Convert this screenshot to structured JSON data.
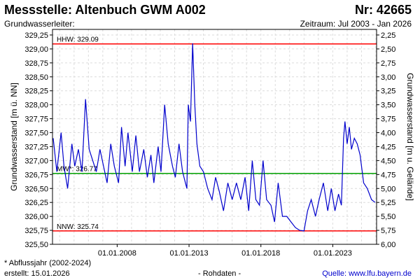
{
  "header": {
    "title": "Messstelle: Altenbuch GWM A002",
    "number": "Nr: 42665",
    "aquifer_label": "Grundwasserleiter:",
    "period": "Zeitraum: Jul 2003 - Jan 2026"
  },
  "footer": {
    "note": "* Abflussjahr (2002-2024)",
    "created": "erstellt:  15.01.2026",
    "rawdata": "- Rohdaten -",
    "source_label": "Quelle: ",
    "source_link": "www.lfu.bayern.de"
  },
  "chart_data": {
    "type": "line",
    "ylabel": "Grundwasserstand [m ü. NN]",
    "ylabel_right": "Grundwasserstand [m u. Gelände]",
    "ylim": [
      325.5,
      329.35
    ],
    "xlim": [
      2003.5,
      2026.05
    ],
    "y_ticks": [
      "325,50",
      "325,75",
      "326,00",
      "326,25",
      "326,50",
      "326,75",
      "327,00",
      "327,25",
      "327,50",
      "327,75",
      "328,00",
      "328,25",
      "328,50",
      "328,75",
      "329,00",
      "329,25"
    ],
    "y2_ticks": [
      "6,00",
      "5,75",
      "5,50",
      "5,25",
      "5,00",
      "4,75",
      "4,50",
      "4,25",
      "4,00",
      "3,75",
      "3,50",
      "3,25",
      "3,00",
      "2,75",
      "2,50",
      "2,25"
    ],
    "x_ticks": [
      {
        "label": "01.01.2008",
        "value": 2008.0
      },
      {
        "label": "01.01.2013",
        "value": 2013.0
      },
      {
        "label": "01.01.2018",
        "value": 2018.0
      },
      {
        "label": "01.01.2023",
        "value": 2023.0
      }
    ],
    "reference_lines": [
      {
        "label": "HHW: 329.09",
        "value": 329.09,
        "color": "#ff0000"
      },
      {
        "label": "MW*: 326.77",
        "value": 326.77,
        "color": "#00a000"
      },
      {
        "label": "NNW: 325.74",
        "value": 325.74,
        "color": "#ff0000"
      }
    ],
    "series_color": "#0000cc",
    "grid": true,
    "x": [
      2003.55,
      2003.8,
      2004.1,
      2004.3,
      2004.55,
      2004.85,
      2005.05,
      2005.3,
      2005.55,
      2005.8,
      2006.05,
      2006.3,
      2006.55,
      2006.8,
      2007.05,
      2007.3,
      2007.55,
      2007.8,
      2008.1,
      2008.3,
      2008.55,
      2008.75,
      2009.05,
      2009.3,
      2009.55,
      2009.85,
      2010.1,
      2010.35,
      2010.55,
      2010.85,
      2011.05,
      2011.3,
      2011.55,
      2011.85,
      2012.05,
      2012.3,
      2012.55,
      2012.75,
      2012.85,
      2012.95,
      2013.1,
      2013.25,
      2013.4,
      2013.55,
      2013.75,
      2014.0,
      2014.3,
      2014.6,
      2014.85,
      2015.1,
      2015.4,
      2015.7,
      2016.0,
      2016.3,
      2016.6,
      2016.9,
      2017.15,
      2017.4,
      2017.65,
      2017.9,
      2018.15,
      2018.4,
      2018.7,
      2018.95,
      2019.2,
      2019.5,
      2019.8,
      2020.1,
      2020.4,
      2020.7,
      2021.0,
      2021.25,
      2021.5,
      2021.8,
      2022.05,
      2022.35,
      2022.65,
      2022.9,
      2023.15,
      2023.4,
      2023.6,
      2023.75,
      2023.85,
      2024.0,
      2024.15,
      2024.3,
      2024.5,
      2024.7,
      2024.9,
      2025.15,
      2025.4,
      2025.7,
      2025.95
    ],
    "values": [
      327.4,
      326.8,
      327.5,
      326.9,
      326.5,
      327.3,
      326.9,
      327.2,
      326.8,
      328.1,
      327.2,
      327.0,
      326.8,
      327.2,
      326.9,
      326.6,
      327.3,
      326.9,
      326.6,
      327.6,
      326.9,
      327.5,
      326.8,
      327.45,
      326.8,
      327.2,
      326.7,
      327.1,
      326.6,
      327.25,
      326.8,
      328.0,
      327.3,
      326.9,
      326.7,
      327.3,
      326.8,
      326.6,
      326.5,
      328.0,
      327.7,
      329.1,
      328.0,
      327.3,
      326.9,
      326.8,
      326.5,
      326.3,
      326.7,
      326.45,
      326.1,
      326.6,
      326.3,
      326.6,
      326.3,
      326.7,
      326.1,
      327.0,
      326.3,
      326.2,
      327.0,
      326.3,
      326.2,
      325.9,
      326.6,
      326.0,
      326.0,
      325.9,
      325.8,
      325.75,
      325.74,
      326.1,
      326.3,
      326.0,
      326.3,
      326.6,
      326.1,
      326.5,
      326.1,
      326.4,
      326.2,
      327.4,
      327.7,
      327.3,
      327.6,
      327.2,
      327.4,
      327.3,
      327.1,
      326.6,
      326.5,
      326.3,
      326.25
    ]
  }
}
